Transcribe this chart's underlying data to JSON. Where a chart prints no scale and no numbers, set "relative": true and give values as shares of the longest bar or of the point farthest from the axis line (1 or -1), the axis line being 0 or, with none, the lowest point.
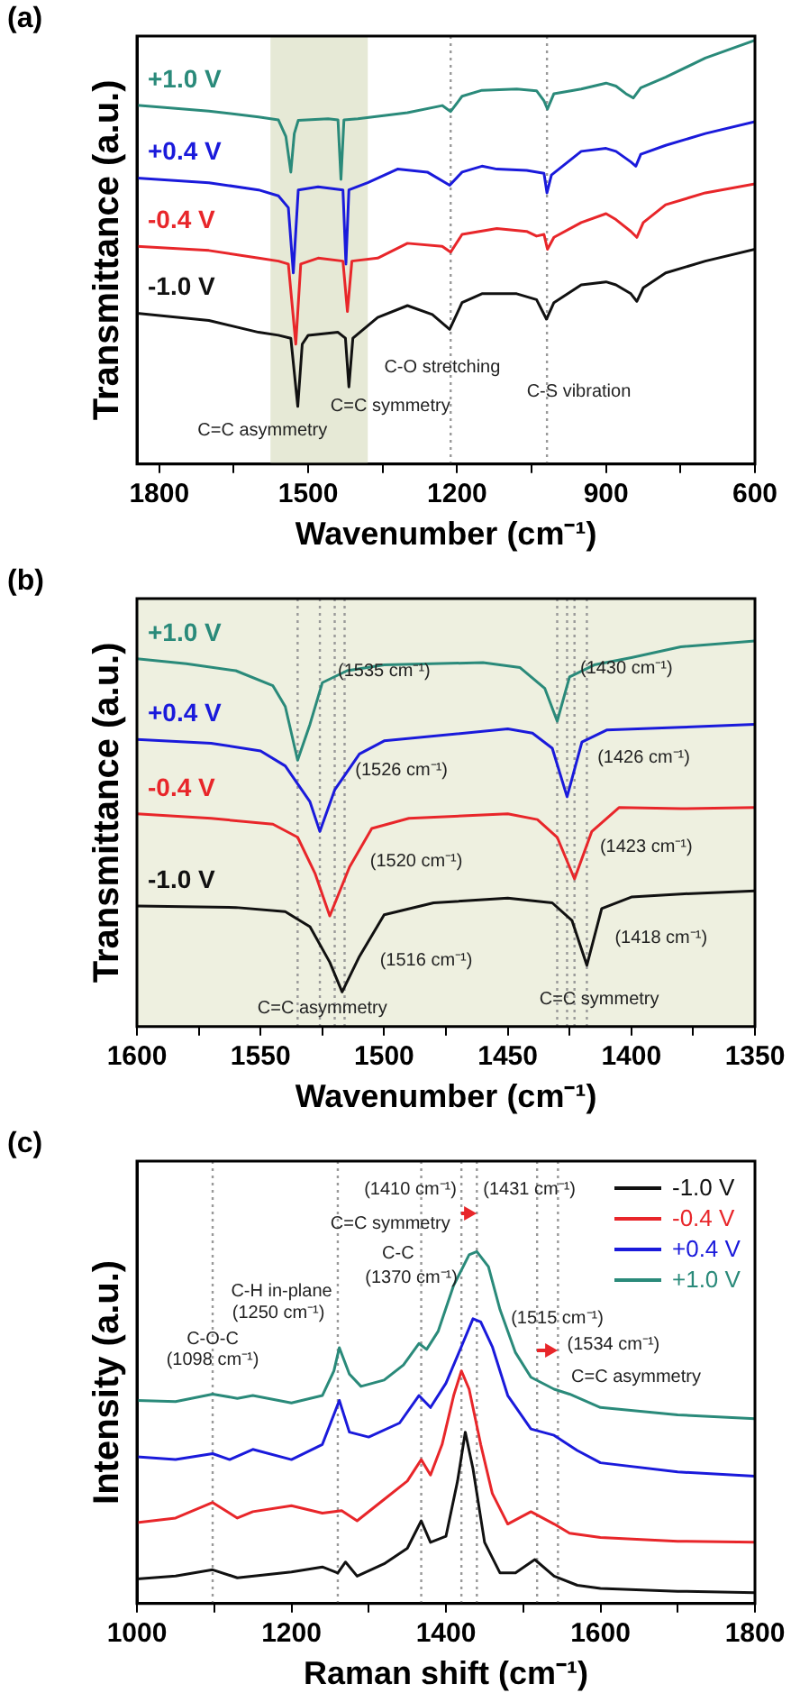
{
  "chart_data": [
    {
      "type": "line",
      "title": "(a)",
      "xlabel": "Wavenumber (cm⁻¹)",
      "ylabel": "Transmittance (a.u.)",
      "relative": true,
      "marker": "none",
      "legend": false,
      "xlim": [
        1845,
        600
      ],
      "xticks": [
        1800,
        {
          "value": 1650,
          "label": null
        },
        1500,
        {
          "value": 1350,
          "label": null
        },
        1200,
        {
          "value": 1050,
          "label": null
        },
        900,
        {
          "value": 750,
          "label": null
        },
        600
      ],
      "bands": [
        {
          "axis": "x",
          "from": 1576,
          "to": 1380,
          "color": "#e6e9d6"
        }
      ],
      "ref_lines": [
        {
          "axis": "x",
          "value": 1213,
          "color": "#999999",
          "line_style": "dotted"
        },
        {
          "axis": "x",
          "value": 1019,
          "color": "#999999",
          "line_style": "dotted"
        }
      ],
      "annotations": [
        "C=C asymmetry",
        "C=C symmetry",
        "C-O stretching",
        "C-S vibration"
      ],
      "series": [
        {
          "name": "-1.0 V",
          "color": "#111111",
          "x": [
            1845,
            1700,
            1600,
            1560,
            1535,
            1521,
            1512,
            1500,
            1440,
            1425,
            1418,
            1410,
            1360,
            1300,
            1250,
            1215,
            1190,
            1150,
            1080,
            1040,
            1020,
            1005,
            950,
            900,
            880,
            850,
            838,
            825,
            780,
            700,
            600
          ],
          "values": [
            0.356,
            0.339,
            0.311,
            0.304,
            0.297,
            0.136,
            0.283,
            0.304,
            0.311,
            0.297,
            0.182,
            0.297,
            0.346,
            0.374,
            0.353,
            0.318,
            0.381,
            0.402,
            0.402,
            0.388,
            0.342,
            0.381,
            0.423,
            0.43,
            0.423,
            0.402,
            0.384,
            0.416,
            0.451,
            0.479,
            0.507
          ]
        },
        {
          "name": "-0.4 V",
          "color": "#e8262a",
          "x": [
            1845,
            1700,
            1600,
            1560,
            1540,
            1525,
            1515,
            1480,
            1430,
            1421,
            1412,
            1360,
            1300,
            1230,
            1213,
            1190,
            1120,
            1060,
            1040,
            1025,
            1018,
            1005,
            950,
            900,
            880,
            850,
            838,
            825,
            780,
            700,
            600
          ],
          "values": [
            0.514,
            0.504,
            0.486,
            0.479,
            0.472,
            0.283,
            0.472,
            0.486,
            0.479,
            0.36,
            0.479,
            0.486,
            0.521,
            0.514,
            0.5,
            0.542,
            0.556,
            0.549,
            0.538,
            0.542,
            0.507,
            0.535,
            0.57,
            0.591,
            0.577,
            0.549,
            0.535,
            0.57,
            0.612,
            0.64,
            0.661
          ]
        },
        {
          "name": "+0.4 V",
          "color": "#1a1adb",
          "x": [
            1845,
            1700,
            1600,
            1560,
            1540,
            1530,
            1520,
            1480,
            1430,
            1424,
            1418,
            1380,
            1320,
            1260,
            1215,
            1190,
            1150,
            1120,
            1060,
            1025,
            1019,
            1010,
            950,
            900,
            880,
            850,
            840,
            830,
            780,
            700,
            600
          ],
          "values": [
            0.675,
            0.664,
            0.647,
            0.633,
            0.605,
            0.451,
            0.647,
            0.654,
            0.647,
            0.472,
            0.647,
            0.664,
            0.696,
            0.689,
            0.658,
            0.689,
            0.703,
            0.696,
            0.693,
            0.686,
            0.64,
            0.682,
            0.738,
            0.745,
            0.738,
            0.713,
            0.703,
            0.731,
            0.752,
            0.78,
            0.808
          ]
        },
        {
          "name": "+1.0 V",
          "color": "#2a8a7a",
          "x": [
            1845,
            1700,
            1600,
            1560,
            1545,
            1535,
            1528,
            1520,
            1460,
            1440,
            1434,
            1428,
            1400,
            1300,
            1230,
            1213,
            1190,
            1150,
            1080,
            1040,
            1025,
            1018,
            1005,
            950,
            900,
            880,
            860,
            845,
            830,
            780,
            700,
            600
          ],
          "values": [
            0.847,
            0.833,
            0.819,
            0.812,
            0.773,
            0.689,
            0.78,
            0.811,
            0.815,
            0.812,
            0.672,
            0.812,
            0.815,
            0.829,
            0.846,
            0.832,
            0.868,
            0.882,
            0.885,
            0.881,
            0.857,
            0.838,
            0.874,
            0.885,
            0.899,
            0.892,
            0.874,
            0.864,
            0.888,
            0.913,
            0.958,
            1
          ]
        }
      ]
    },
    {
      "type": "line",
      "title": "(b)",
      "xlabel": "Wavenumber (cm⁻¹)",
      "ylabel": "Transmittance (a.u.)",
      "relative": true,
      "marker": "none",
      "legend": false,
      "xlim": [
        1600,
        1350
      ],
      "xticks": [
        1600,
        {
          "value": 1575,
          "label": null
        },
        1550,
        {
          "value": 1525,
          "label": null
        },
        1500,
        {
          "value": 1475,
          "label": null
        },
        1450,
        {
          "value": 1425,
          "label": null
        },
        1400,
        {
          "value": 1375,
          "label": null
        },
        1350
      ],
      "bands": [
        {
          "axis": "x",
          "from": 1600,
          "to": 1350,
          "color": "#eef0e0"
        }
      ],
      "ref_lines": [
        {
          "axis": "x",
          "value": 1535,
          "color": "#999999",
          "line_style": "dotted"
        },
        {
          "axis": "x",
          "value": 1526,
          "color": "#999999",
          "line_style": "dotted"
        },
        {
          "axis": "x",
          "value": 1520,
          "color": "#999999",
          "line_style": "dotted"
        },
        {
          "axis": "x",
          "value": 1516,
          "color": "#999999",
          "line_style": "dotted"
        },
        {
          "axis": "x",
          "value": 1430,
          "color": "#999999",
          "line_style": "dotted"
        },
        {
          "axis": "x",
          "value": 1426,
          "color": "#999999",
          "line_style": "dotted"
        },
        {
          "axis": "x",
          "value": 1423,
          "color": "#999999",
          "line_style": "dotted"
        },
        {
          "axis": "x",
          "value": 1418,
          "color": "#999999",
          "line_style": "dotted"
        }
      ],
      "annotations": [
        "(1535 cm⁻¹)",
        "(1430 cm⁻¹)",
        "(1526 cm⁻¹)",
        "(1426 cm⁻¹)",
        "(1520 cm⁻¹)",
        "(1423 cm⁻¹)",
        "(1516 cm⁻¹)",
        "(1418 cm⁻¹)",
        "C=C asymmetry",
        "C=C symmetry"
      ],
      "series": [
        {
          "name": "-1.0 V",
          "color": "#111111",
          "x": [
            1600,
            1560,
            1540,
            1530,
            1522,
            1517,
            1510,
            1500,
            1480,
            1450,
            1432,
            1424,
            1418,
            1412,
            1400,
            1380,
            1350
          ],
          "values": [
            0.313,
            0.309,
            0.298,
            0.259,
            0.167,
            0.09,
            0.182,
            0.29,
            0.321,
            0.333,
            0.321,
            0.275,
            0.159,
            0.306,
            0.336,
            0.344,
            0.352
          ]
        },
        {
          "name": "-0.4 V",
          "color": "#e8262a",
          "x": [
            1600,
            1570,
            1545,
            1535,
            1528,
            1522,
            1514,
            1505,
            1490,
            1450,
            1438,
            1430,
            1423,
            1416,
            1405,
            1380,
            1350
          ],
          "values": [
            0.552,
            0.54,
            0.525,
            0.491,
            0.398,
            0.287,
            0.414,
            0.514,
            0.54,
            0.552,
            0.537,
            0.491,
            0.383,
            0.506,
            0.568,
            0.565,
            0.568
          ]
        },
        {
          "name": "+0.4 V",
          "color": "#1a1adb",
          "x": [
            1600,
            1570,
            1550,
            1540,
            1530,
            1526,
            1520,
            1510,
            1500,
            1450,
            1440,
            1432,
            1426,
            1420,
            1410,
            1380,
            1350
          ],
          "values": [
            0.745,
            0.735,
            0.715,
            0.676,
            0.583,
            0.506,
            0.614,
            0.707,
            0.741,
            0.772,
            0.761,
            0.722,
            0.596,
            0.738,
            0.769,
            0.776,
            0.784
          ]
        },
        {
          "name": "+1.0 V",
          "color": "#2a8a7a",
          "x": [
            1600,
            1580,
            1560,
            1545,
            1540,
            1535,
            1530,
            1525,
            1515,
            1500,
            1460,
            1445,
            1435,
            1430,
            1425,
            1415,
            1400,
            1380,
            1350
          ],
          "values": [
            0.954,
            0.941,
            0.923,
            0.884,
            0.83,
            0.691,
            0.784,
            0.892,
            0.923,
            0.938,
            0.944,
            0.931,
            0.877,
            0.792,
            0.907,
            0.938,
            0.957,
            0.985,
            1
          ]
        }
      ]
    },
    {
      "type": "line",
      "title": "(c)",
      "xlabel": "Raman shift (cm⁻¹)",
      "ylabel": "Intensity (a.u.)",
      "relative": true,
      "marker": "none",
      "legend": "top right",
      "xlim": [
        1000,
        1800
      ],
      "xticks": [
        1000,
        {
          "value": 1100,
          "label": null
        },
        1200,
        {
          "value": 1300,
          "label": null
        },
        1400,
        {
          "value": 1500,
          "label": null
        },
        1600,
        {
          "value": 1700,
          "label": null
        },
        1800
      ],
      "ref_lines": [
        {
          "axis": "x",
          "value": 1098,
          "color": "#999999",
          "line_style": "dotted"
        },
        {
          "axis": "x",
          "value": 1260,
          "color": "#999999",
          "line_style": "dotted"
        },
        {
          "axis": "x",
          "value": 1368,
          "color": "#999999",
          "line_style": "dotted"
        },
        {
          "axis": "x",
          "value": 1420,
          "color": "#999999",
          "line_style": "dotted"
        },
        {
          "axis": "x",
          "value": 1440,
          "color": "#999999",
          "line_style": "dotted"
        },
        {
          "axis": "x",
          "value": 1518,
          "color": "#999999",
          "line_style": "dotted"
        },
        {
          "axis": "x",
          "value": 1545,
          "color": "#999999",
          "line_style": "dotted"
        }
      ],
      "annotations": [
        "C-O-C",
        "(1098 cm⁻¹)",
        "C-H in-plane",
        "(1250 cm⁻¹)",
        "C-C",
        "(1370 cm⁻¹)",
        "C=C symmetry",
        "(1410 cm⁻¹)",
        "(1431 cm⁻¹)",
        "(1515 cm⁻¹)",
        "(1534 cm⁻¹)",
        "C=C asymmetry"
      ],
      "series": [
        {
          "name": "-1.0 V",
          "color": "#111111",
          "x": [
            1000,
            1050,
            1098,
            1130,
            1200,
            1240,
            1260,
            1270,
            1285,
            1320,
            1350,
            1368,
            1380,
            1400,
            1415,
            1425,
            1435,
            1450,
            1470,
            1490,
            1515,
            1540,
            1570,
            1600,
            1700,
            1800
          ],
          "values": [
            0.07,
            0.078,
            0.096,
            0.073,
            0.09,
            0.104,
            0.087,
            0.118,
            0.078,
            0.113,
            0.157,
            0.235,
            0.174,
            0.191,
            0.348,
            0.487,
            0.383,
            0.174,
            0.087,
            0.087,
            0.125,
            0.078,
            0.052,
            0.043,
            0.035,
            0.031
          ]
        },
        {
          "name": "-0.4 V",
          "color": "#e8262a",
          "x": [
            1000,
            1050,
            1098,
            1130,
            1150,
            1200,
            1240,
            1265,
            1285,
            1320,
            1350,
            1368,
            1380,
            1395,
            1410,
            1420,
            1430,
            1445,
            1460,
            1480,
            1510,
            1540,
            1560,
            1600,
            1700,
            1800
          ],
          "values": [
            0.23,
            0.243,
            0.287,
            0.243,
            0.261,
            0.278,
            0.257,
            0.264,
            0.235,
            0.296,
            0.348,
            0.409,
            0.365,
            0.452,
            0.591,
            0.661,
            0.609,
            0.452,
            0.313,
            0.226,
            0.261,
            0.226,
            0.2,
            0.188,
            0.177,
            0.174
          ]
        },
        {
          "name": "+0.4 V",
          "color": "#1a1adb",
          "x": [
            1000,
            1050,
            1098,
            1120,
            1150,
            1200,
            1240,
            1262,
            1275,
            1300,
            1340,
            1365,
            1380,
            1400,
            1420,
            1435,
            1445,
            1460,
            1480,
            1510,
            1540,
            1570,
            1600,
            1700,
            1800
          ],
          "values": [
            0.417,
            0.409,
            0.426,
            0.409,
            0.438,
            0.409,
            0.452,
            0.577,
            0.487,
            0.473,
            0.513,
            0.591,
            0.557,
            0.626,
            0.73,
            0.809,
            0.8,
            0.73,
            0.591,
            0.496,
            0.478,
            0.435,
            0.4,
            0.374,
            0.362
          ]
        },
        {
          "name": "+1.0 V",
          "color": "#2a8a7a",
          "x": [
            1000,
            1050,
            1098,
            1130,
            1150,
            1200,
            1240,
            1255,
            1262,
            1275,
            1290,
            1320,
            1345,
            1365,
            1375,
            1390,
            1410,
            1430,
            1440,
            1455,
            1470,
            1490,
            1510,
            1540,
            1560,
            1600,
            1700,
            1800
          ],
          "values": [
            0.577,
            0.574,
            0.595,
            0.583,
            0.591,
            0.57,
            0.591,
            0.661,
            0.727,
            0.652,
            0.617,
            0.635,
            0.678,
            0.739,
            0.722,
            0.774,
            0.904,
            0.991,
            1,
            0.957,
            0.835,
            0.713,
            0.643,
            0.609,
            0.595,
            0.557,
            0.536,
            0.525
          ]
        }
      ]
    }
  ]
}
